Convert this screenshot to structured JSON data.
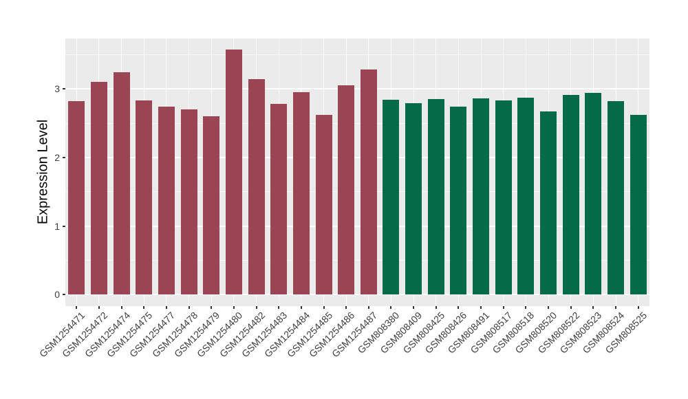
{
  "chart_data": {
    "type": "bar",
    "title": "",
    "xlabel": "",
    "ylabel": "Expression Level",
    "ylim": [
      0,
      3.73
    ],
    "yticks": [
      0,
      1,
      2,
      3
    ],
    "yticks_minor": [
      0.5,
      1.5,
      2.5,
      3.5
    ],
    "grid": "white major and minor gridlines on grey panel",
    "legend": "none",
    "panel_bg": "#EBEBEB",
    "grid_color": "#FFFFFF",
    "categories": [
      "GSM1254471",
      "GSM1254472",
      "GSM1254474",
      "GSM1254475",
      "GSM1254477",
      "GSM1254478",
      "GSM1254479",
      "GSM1254480",
      "GSM1254482",
      "GSM1254483",
      "GSM1254484",
      "GSM1254485",
      "GSM1254486",
      "GSM1254487",
      "GSM808380",
      "GSM808409",
      "GSM808425",
      "GSM808426",
      "GSM808491",
      "GSM808517",
      "GSM808518",
      "GSM808520",
      "GSM808522",
      "GSM808523",
      "GSM808524",
      "GSM808525"
    ],
    "values": [
      2.82,
      3.1,
      3.24,
      2.83,
      2.74,
      2.7,
      2.6,
      3.57,
      3.14,
      2.78,
      2.95,
      2.62,
      3.05,
      3.28,
      2.84,
      2.79,
      2.85,
      2.74,
      2.86,
      2.83,
      2.87,
      2.67,
      2.91,
      2.94,
      2.82,
      2.62
    ],
    "bar_groups": [
      "red",
      "red",
      "red",
      "red",
      "red",
      "red",
      "red",
      "red",
      "red",
      "red",
      "red",
      "red",
      "red",
      "red",
      "green",
      "green",
      "green",
      "green",
      "green",
      "green",
      "green",
      "green",
      "green",
      "green",
      "green",
      "green"
    ],
    "group_colors": {
      "red": "#9B4453",
      "green": "#046A47"
    }
  }
}
